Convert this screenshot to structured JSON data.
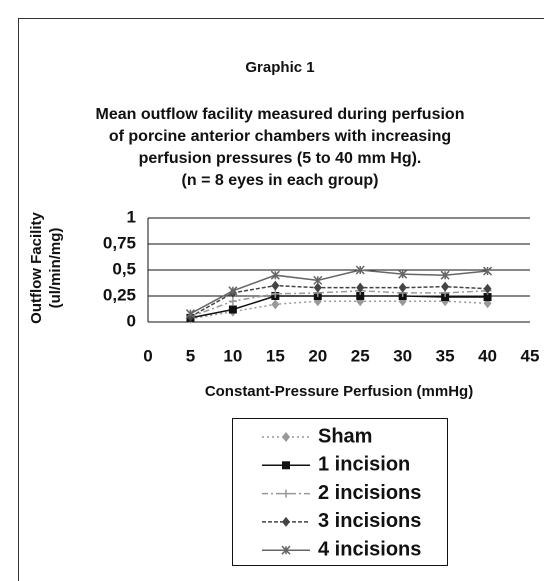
{
  "chart_data": {
    "type": "line",
    "title": "Graphic 1",
    "subtitle": [
      "Mean outflow facility measured during perfusion",
      "of porcine anterior chambers with increasing",
      "perfusion pressures (5 to 40 mm Hg).",
      "(n = 8 eyes in each group)"
    ],
    "y_label": [
      "Outflow Facility",
      "(ul/min/mg)"
    ],
    "x_label": "Constant-Pressure Perfusion (mmHg)",
    "x": [
      5,
      10,
      15,
      20,
      25,
      30,
      35,
      40
    ],
    "xlim": [
      0,
      45
    ],
    "xticks": [
      0,
      5,
      10,
      15,
      20,
      25,
      30,
      35,
      40,
      45
    ],
    "ylim": [
      0,
      1
    ],
    "yticks": [
      0,
      {
        "value": 0.25,
        "label": "0,25"
      },
      {
        "value": 0.5,
        "label": "0,5"
      },
      {
        "value": 0.75,
        "label": "0,75"
      },
      1
    ],
    "grid": true,
    "series": [
      {
        "name": "Sham",
        "color": "#999999",
        "dash": "2,3",
        "marker": "diamond",
        "values": [
          0.03,
          0.1,
          0.17,
          0.2,
          0.2,
          0.2,
          0.2,
          0.18
        ]
      },
      {
        "name": "1 incision",
        "color": "#111111",
        "dash": "none",
        "marker": "square",
        "values": [
          0.04,
          0.12,
          0.25,
          0.25,
          0.25,
          0.25,
          0.24,
          0.24
        ]
      },
      {
        "name": "2 incisions",
        "color": "#999999",
        "dash": "6,3,2,3",
        "marker": "plus",
        "values": [
          0.05,
          0.2,
          0.27,
          0.28,
          0.3,
          0.28,
          0.28,
          0.3
        ]
      },
      {
        "name": "3 incisions",
        "color": "#444444",
        "dash": "4,2",
        "marker": "diamond",
        "values": [
          0.05,
          0.28,
          0.35,
          0.33,
          0.33,
          0.33,
          0.34,
          0.32
        ]
      },
      {
        "name": "4 incisions",
        "color": "#666666",
        "dash": "none",
        "marker": "star",
        "values": [
          0.08,
          0.3,
          0.45,
          0.4,
          0.5,
          0.46,
          0.45,
          0.49
        ]
      }
    ]
  }
}
